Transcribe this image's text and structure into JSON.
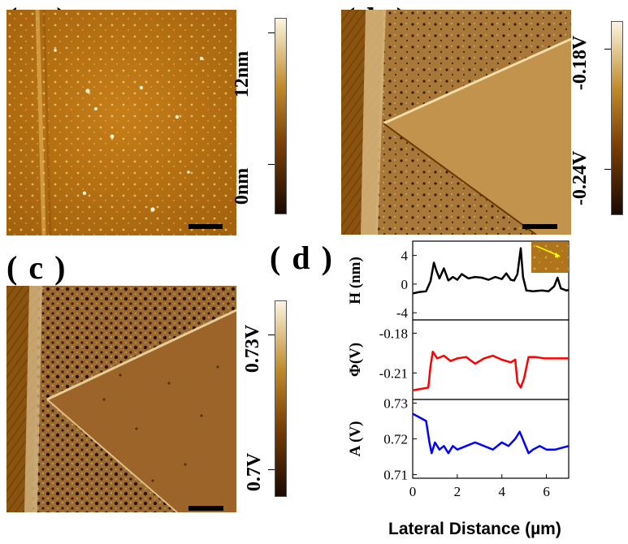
{
  "panels": {
    "a": {
      "label": "( a )",
      "colorbar": {
        "top_label": "12nm",
        "bottom_label": "0nm"
      }
    },
    "b": {
      "label": "( b )",
      "colorbar": {
        "top_label": "-0.18V",
        "bottom_label": "-0.24V"
      }
    },
    "c": {
      "label": "( c )",
      "colorbar": {
        "top_label": "0.73V",
        "bottom_label": "0.7V"
      }
    },
    "d": {
      "label": "( d )",
      "xlabel": "Lateral Distance (µm)"
    }
  },
  "colors": {
    "afm_dark": "#3a1a05",
    "afm_mid": "#a8650f",
    "afm_light": "#f3e3a8",
    "height_trace": "#000000",
    "phase_trace": "#ff0000",
    "amplitude_trace": "#0000ff",
    "inset_arrow": "#ffff00"
  },
  "chart_data": [
    {
      "type": "line",
      "ylabel": "H (nm)",
      "ylim": [
        -5,
        6
      ],
      "yticks": [
        "4",
        "0",
        "-4"
      ],
      "ytick_values": [
        4,
        0,
        -4
      ],
      "series": [
        {
          "color": "#000000",
          "x": [
            0,
            0.3,
            0.6,
            0.8,
            0.95,
            1.05,
            1.2,
            1.4,
            1.6,
            1.8,
            2.0,
            2.2,
            2.5,
            2.8,
            3.1,
            3.4,
            3.7,
            4.0,
            4.2,
            4.4,
            4.55,
            4.7,
            4.85,
            4.95,
            5.1,
            5.4,
            5.8,
            6.1,
            6.35,
            6.5,
            6.65,
            6.9,
            7.0
          ],
          "y": [
            -1.3,
            -1.1,
            -1.0,
            0.4,
            3.0,
            2.0,
            0.8,
            2.2,
            0.5,
            1.0,
            0.6,
            1.4,
            0.8,
            1.0,
            0.9,
            0.6,
            1.0,
            0.7,
            1.5,
            0.6,
            0.5,
            1.4,
            5.0,
            1.0,
            -0.9,
            -1.0,
            -0.9,
            -1.0,
            -0.3,
            0.9,
            -0.6,
            -0.9,
            -0.8
          ]
        }
      ]
    },
    {
      "type": "line",
      "ylabel": "Φ(V)",
      "ylim": [
        -0.23,
        -0.17
      ],
      "yticks": [
        "-0.18",
        "-0.21"
      ],
      "ytick_values": [
        -0.18,
        -0.21
      ],
      "series": [
        {
          "color": "#ff0000",
          "x": [
            0,
            0.4,
            0.7,
            0.8,
            0.9,
            1.1,
            1.4,
            1.7,
            2.0,
            2.4,
            2.8,
            3.2,
            3.6,
            4.0,
            4.4,
            4.6,
            4.7,
            4.85,
            5.0,
            5.2,
            5.5,
            5.9,
            6.4,
            7.0
          ],
          "y": [
            -0.223,
            -0.222,
            -0.221,
            -0.205,
            -0.194,
            -0.199,
            -0.197,
            -0.201,
            -0.199,
            -0.198,
            -0.203,
            -0.199,
            -0.197,
            -0.2,
            -0.202,
            -0.2,
            -0.217,
            -0.221,
            -0.214,
            -0.198,
            -0.198,
            -0.199,
            -0.199,
            -0.199
          ]
        }
      ]
    },
    {
      "type": "line",
      "ylabel": "A (V)",
      "ylim": [
        0.709,
        0.731
      ],
      "yticks": [
        "0.73",
        "0.72",
        "0.71"
      ],
      "ytick_values": [
        0.73,
        0.72,
        0.71
      ],
      "xlim": [
        0,
        7
      ],
      "xticks": [
        "0",
        "2",
        "4",
        "6"
      ],
      "xtick_values": [
        0,
        2,
        4,
        6
      ],
      "series": [
        {
          "color": "#0000ff",
          "x": [
            0,
            0.3,
            0.6,
            0.75,
            0.85,
            1.0,
            1.2,
            1.4,
            1.6,
            1.8,
            2.0,
            2.4,
            2.8,
            3.2,
            3.6,
            4.0,
            4.3,
            4.6,
            4.8,
            5.0,
            5.2,
            5.4,
            5.7,
            6.0,
            6.4,
            7.0
          ],
          "y": [
            0.727,
            0.726,
            0.725,
            0.719,
            0.716,
            0.719,
            0.717,
            0.718,
            0.716,
            0.718,
            0.717,
            0.718,
            0.719,
            0.718,
            0.717,
            0.719,
            0.718,
            0.72,
            0.722,
            0.719,
            0.716,
            0.717,
            0.718,
            0.717,
            0.717,
            0.718
          ]
        }
      ]
    }
  ]
}
